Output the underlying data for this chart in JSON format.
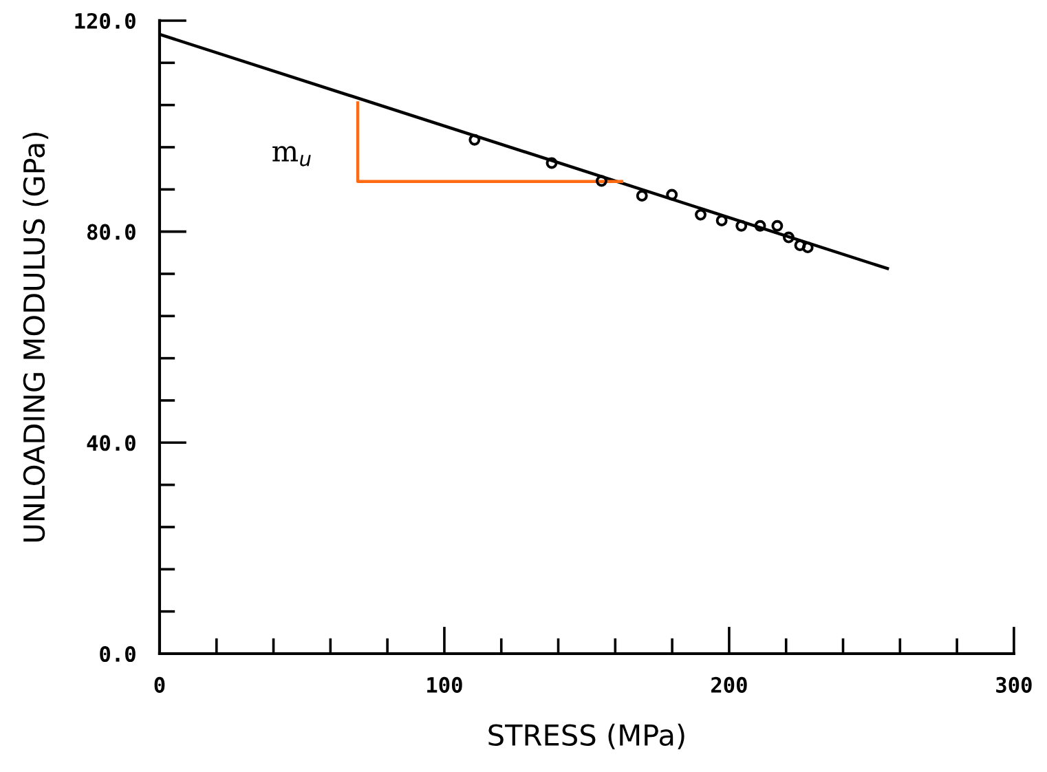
{
  "chart_data": {
    "type": "scatter",
    "xlabel": "STRESS (MPa)",
    "ylabel": "UNLOADING MODULUS (GPa)",
    "xlim": [
      0,
      300
    ],
    "ylim": [
      0,
      120
    ],
    "xticks": [
      0,
      {
        "value": 20,
        "label": null
      },
      {
        "value": 40,
        "label": null
      },
      {
        "value": 60,
        "label": null
      },
      {
        "value": 80,
        "label": null
      },
      100,
      {
        "value": 120,
        "label": null
      },
      {
        "value": 140,
        "label": null
      },
      {
        "value": 160,
        "label": null
      },
      {
        "value": 180,
        "label": null
      },
      200,
      {
        "value": 220,
        "label": null
      },
      {
        "value": 240,
        "label": null
      },
      {
        "value": 260,
        "label": null
      },
      {
        "value": 280,
        "label": null
      },
      300
    ],
    "yticks": [
      {
        "value": 0,
        "label": "0.0"
      },
      {
        "value": 8,
        "label": null
      },
      {
        "value": 16,
        "label": null
      },
      {
        "value": 24,
        "label": null
      },
      {
        "value": 32,
        "label": null
      },
      {
        "value": 40,
        "label": "40.0"
      },
      {
        "value": 48,
        "label": null
      },
      {
        "value": 56,
        "label": null
      },
      {
        "value": 64,
        "label": null
      },
      {
        "value": 72,
        "label": null
      },
      {
        "value": 80,
        "label": "80.0"
      },
      {
        "value": 88,
        "label": null
      },
      {
        "value": 96,
        "label": null
      },
      {
        "value": 104,
        "label": null
      },
      {
        "value": 112,
        "label": null
      },
      {
        "value": 120,
        "label": "120.0"
      }
    ],
    "grid": false,
    "legend": false,
    "marker": "circle",
    "annotations": [
      "m$_{u}$"
    ],
    "series": [
      {
        "color": "#000000",
        "x": [
          110.6,
          137.7,
          155.2,
          169.4,
          179.9,
          190.0,
          197.4,
          204.3,
          210.9,
          216.9,
          220.9,
          224.9,
          227.6
        ],
        "values": [
          97.4,
          93.0,
          89.6,
          86.8,
          87.0,
          83.2,
          82.1,
          81.1,
          81.1,
          81.1,
          78.9,
          77.4,
          77.0
        ]
      },
      {
        "type": "line",
        "color": "#000000",
        "marker": "none",
        "x": [
          0,
          255.6
        ],
        "values": [
          117.4,
          73.0
        ]
      },
      {
        "type": "line",
        "color": "#ff6a13",
        "marker": "none",
        "x": [
          69.6,
          69.6,
          162.3
        ],
        "values": [
          104.4,
          89.5,
          89.5
        ]
      }
    ]
  }
}
